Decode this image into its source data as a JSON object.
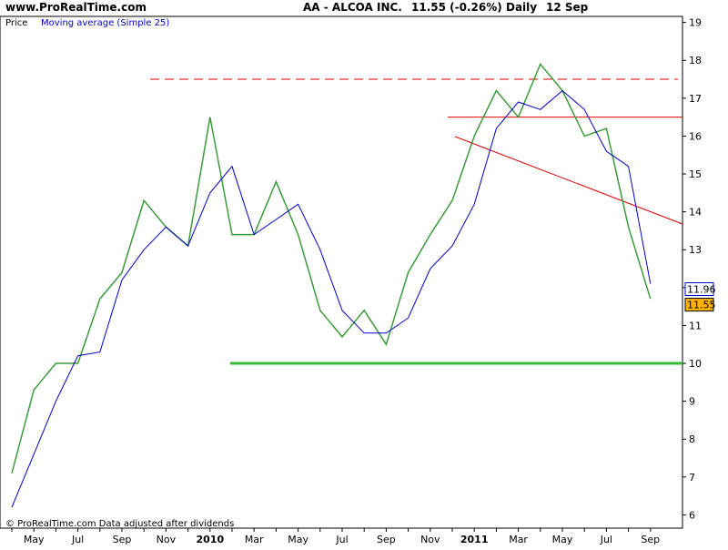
{
  "chart_data": {
    "type": "line",
    "site": "www.ProRealTime.com",
    "title": "AA - ALCOA INC.",
    "quote": "11.55 (-0.26%)",
    "period": "Daily",
    "date": "12 Sep",
    "footer": "© ProRealTime.com Data adjusted after dividends",
    "categories": [
      null,
      "May",
      null,
      "Jul",
      null,
      "Sep",
      null,
      "Nov",
      null,
      "2010",
      null,
      "Mar",
      null,
      "May",
      null,
      "Jul",
      null,
      "Sep",
      null,
      "Nov",
      null,
      "2011",
      null,
      "Mar",
      null,
      "May",
      null,
      "Jul",
      null,
      "Sep"
    ],
    "series": [
      {
        "name": "Price",
        "color": "#3c9a3c",
        "last": 11.55,
        "values": [
          7.1,
          9.3,
          10.0,
          10.0,
          11.7,
          12.4,
          14.3,
          13.6,
          13.1,
          16.5,
          13.4,
          13.4,
          14.8,
          13.4,
          11.4,
          10.7,
          11.4,
          10.5,
          12.4,
          13.4,
          14.3,
          16.0,
          17.2,
          16.5,
          17.9,
          17.2,
          16.0,
          16.2,
          13.6,
          11.7
        ]
      },
      {
        "name": "Moving average (Simple 25)",
        "color": "#0000cc",
        "last": 11.96,
        "values": [
          6.2,
          7.6,
          9.0,
          10.2,
          10.3,
          12.2,
          13.0,
          13.6,
          13.1,
          14.5,
          15.2,
          13.4,
          13.8,
          14.2,
          13.0,
          11.4,
          10.8,
          10.8,
          11.2,
          12.5,
          13.1,
          14.2,
          16.2,
          16.9,
          16.7,
          17.2,
          16.7,
          15.6,
          15.2,
          12.1
        ]
      }
    ],
    "reference_lines": [
      {
        "value": 17.5,
        "color": "#dd0000",
        "dashed": true
      },
      {
        "value": 16.5,
        "color": "#dd0000",
        "dashed": false
      },
      {
        "value": 10,
        "color": "#33bb33",
        "dashed": false
      }
    ],
    "ylim": [
      5.65,
      19.4
    ],
    "yticks": [
      6,
      7,
      8,
      9,
      10,
      11,
      12,
      13,
      14,
      15,
      16,
      17,
      18,
      19
    ],
    "grid": false
  }
}
